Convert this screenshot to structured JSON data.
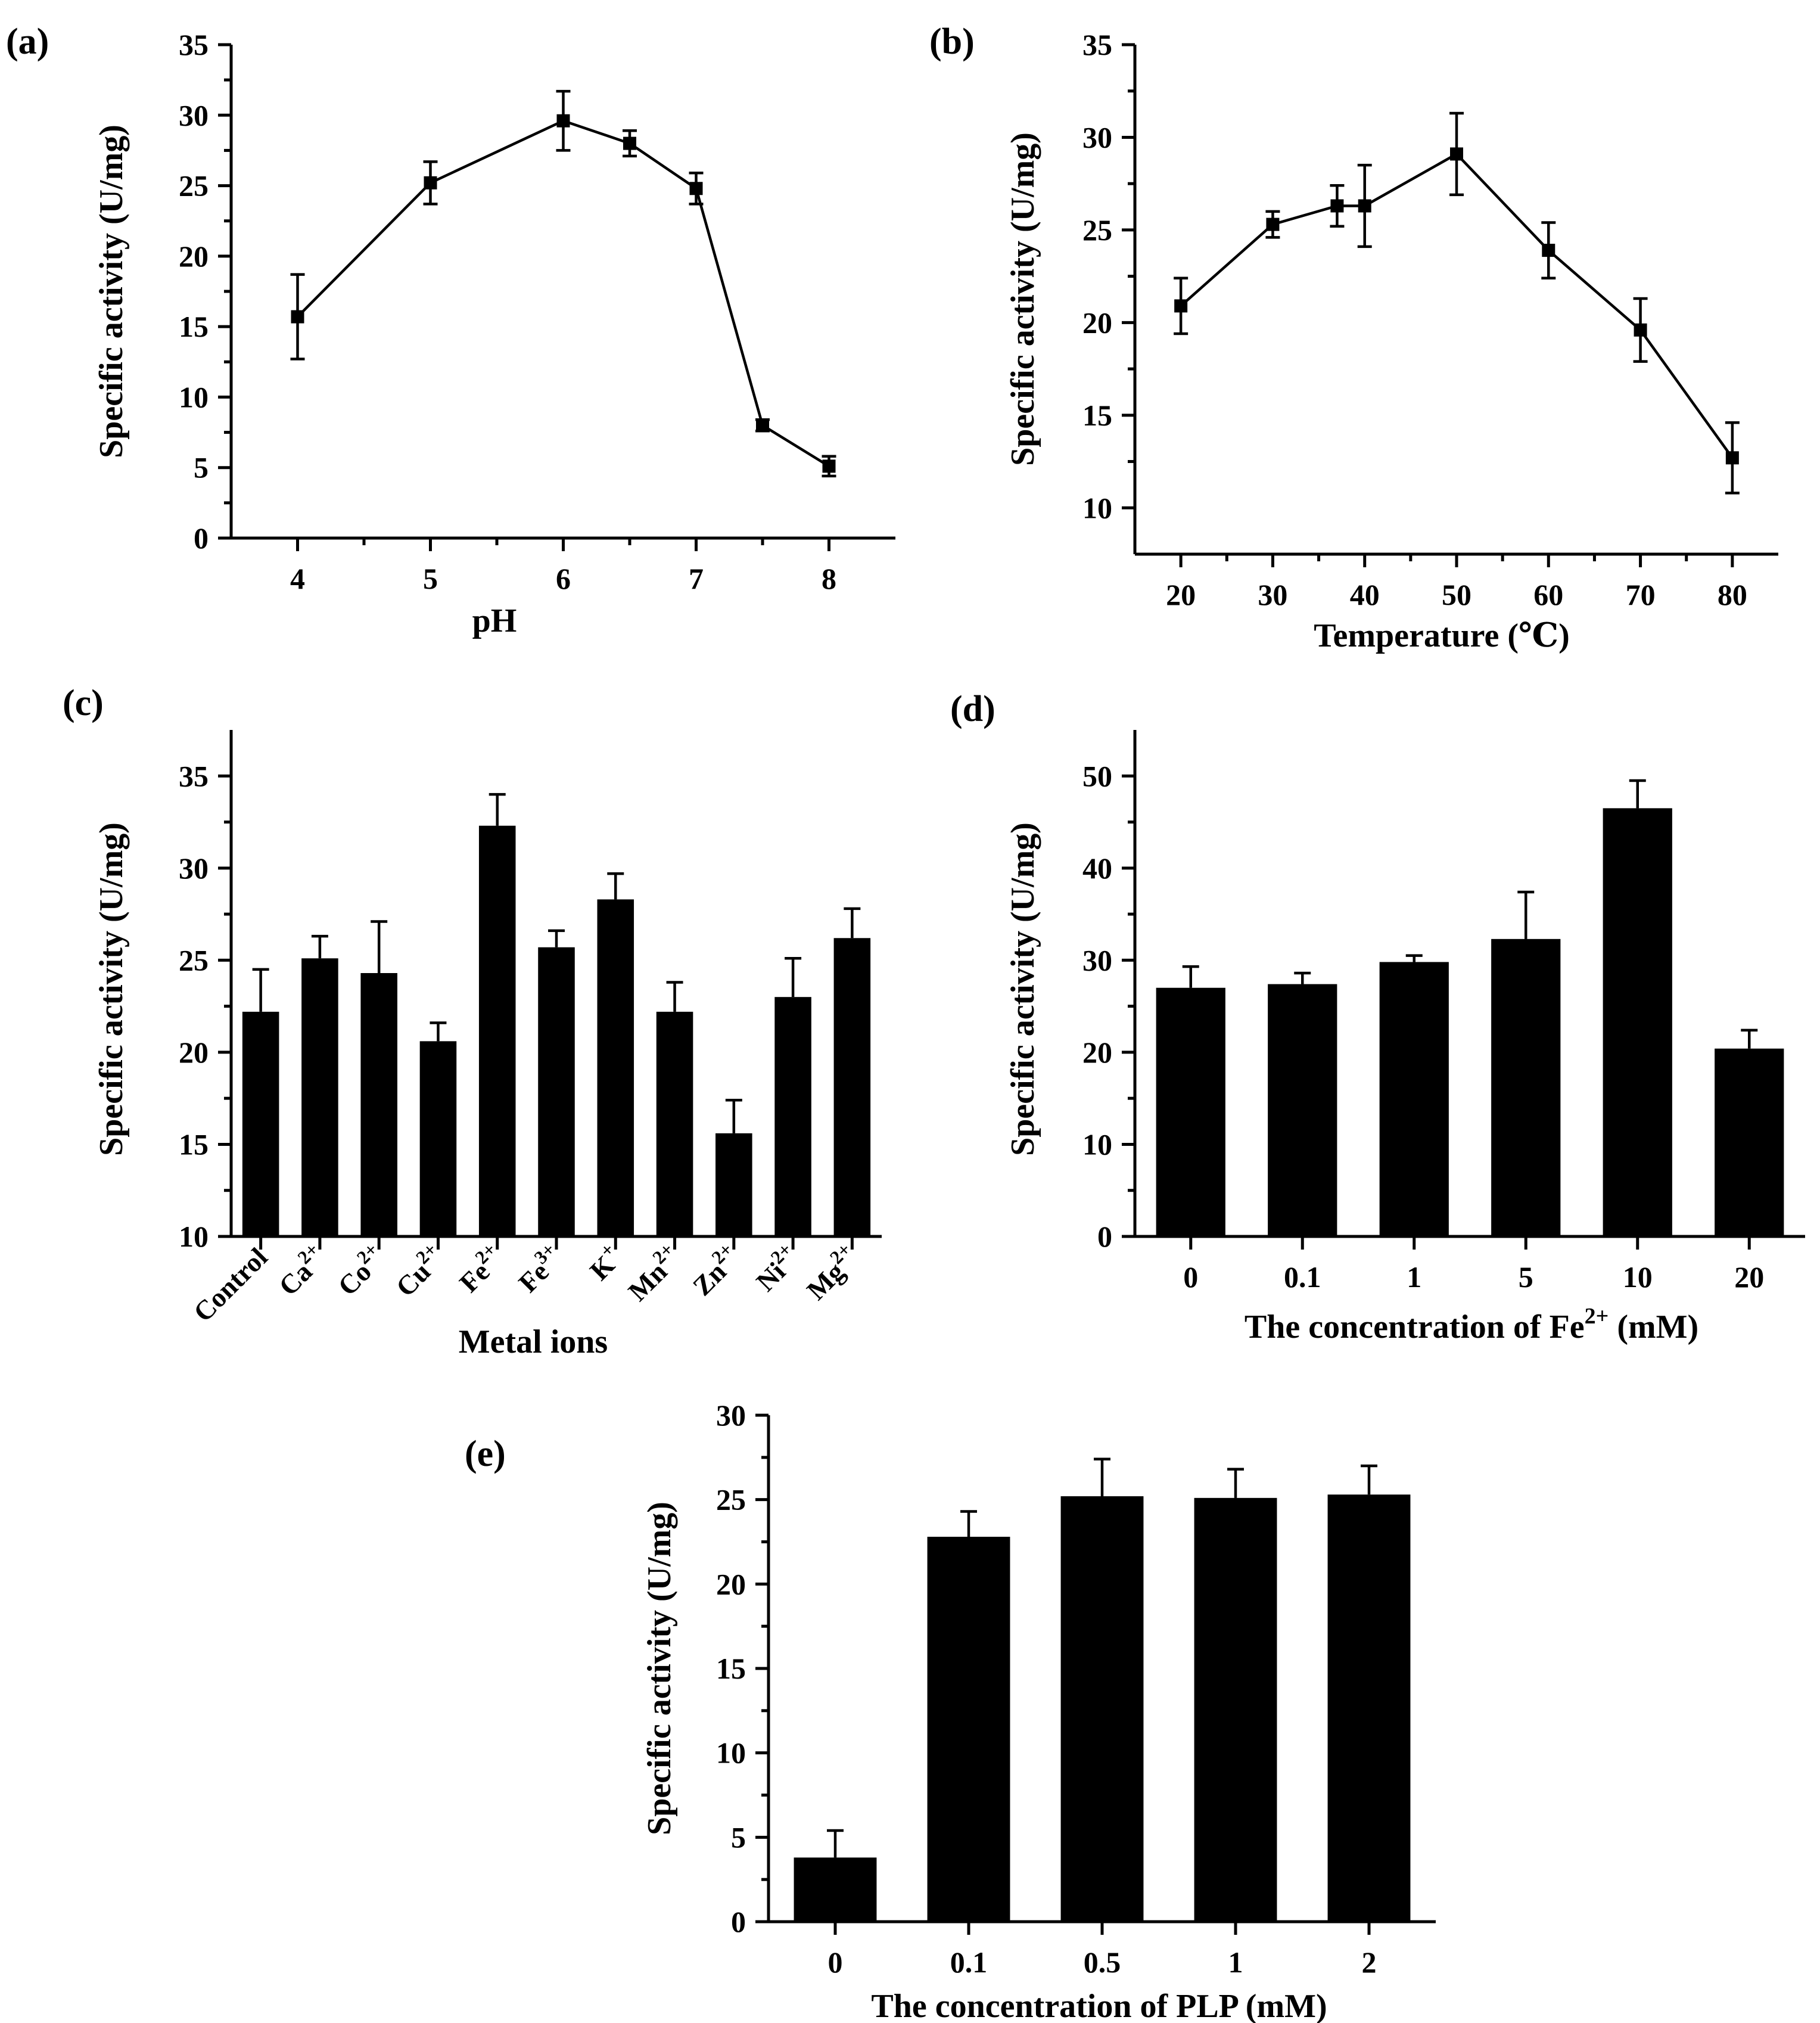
{
  "chart_data": [
    {
      "id": "a",
      "panel_label": "(a)",
      "type": "line",
      "xlabel": "pH",
      "ylabel": "Specific activity (U/mg)",
      "x": [
        4,
        5,
        6,
        6.5,
        7,
        7.5,
        8
      ],
      "values": [
        15.7,
        25.2,
        29.6,
        28.0,
        24.8,
        8.0,
        5.1
      ],
      "errors": [
        3.0,
        1.5,
        2.1,
        0.9,
        1.1,
        0.4,
        0.7
      ],
      "xlim": [
        3.5,
        8.5
      ],
      "ylim": [
        0,
        35
      ],
      "xticks": [
        "4",
        "5",
        "6",
        "7",
        "8"
      ],
      "yticks": [
        "0",
        "5",
        "10",
        "15",
        "20",
        "25",
        "30",
        "35"
      ]
    },
    {
      "id": "b",
      "panel_label": "(b)",
      "type": "line",
      "xlabel": "Temperature (℃)",
      "ylabel": "Specific activity (U/mg)",
      "x": [
        20,
        30,
        37,
        40,
        50,
        60,
        70,
        80
      ],
      "values": [
        20.9,
        25.3,
        26.3,
        26.3,
        29.1,
        23.9,
        19.6,
        12.7
      ],
      "errors": [
        1.5,
        0.7,
        1.1,
        2.2,
        2.2,
        1.5,
        1.7,
        1.9
      ],
      "xlim": [
        15,
        85
      ],
      "ylim": [
        7.5,
        35
      ],
      "xticks": [
        "20",
        "30",
        "40",
        "50",
        "60",
        "70",
        "80"
      ],
      "yticks": [
        "10",
        "15",
        "20",
        "25",
        "30",
        "35"
      ]
    },
    {
      "id": "c",
      "panel_label": "(c)",
      "type": "bar",
      "xlabel": "Metal ions",
      "ylabel": "Specific activity (U/mg)",
      "categories": [
        {
          "base": "Control",
          "sup": ""
        },
        {
          "base": "Ca",
          "sup": "2+"
        },
        {
          "base": "Co",
          "sup": "2+"
        },
        {
          "base": "Cu",
          "sup": "2+"
        },
        {
          "base": "Fe",
          "sup": "2+"
        },
        {
          "base": "Fe",
          "sup": "3+"
        },
        {
          "base": "K",
          "sup": "+"
        },
        {
          "base": "Mn",
          "sup": "2+"
        },
        {
          "base": "Zn",
          "sup": "2+"
        },
        {
          "base": "Ni",
          "sup": "2+"
        },
        {
          "base": "Mg",
          "sup": "2+"
        }
      ],
      "values": [
        22.2,
        25.1,
        24.3,
        20.6,
        32.3,
        25.7,
        28.3,
        22.2,
        15.6,
        23.0,
        26.2
      ],
      "errors": [
        2.3,
        1.2,
        2.8,
        1.0,
        1.7,
        0.9,
        1.4,
        1.6,
        1.8,
        2.1,
        1.6
      ],
      "ylim": [
        10,
        37.5
      ],
      "yticks": [
        "10",
        "15",
        "20",
        "25",
        "30",
        "35"
      ]
    },
    {
      "id": "d",
      "panel_label": "(d)",
      "type": "bar",
      "xlabel": {
        "pre": "The concentration of Fe",
        "sup": "2+",
        "post": " (mM)"
      },
      "ylabel": "Specific activity (U/mg)",
      "categories": [
        "0",
        "0.1",
        "1",
        "5",
        "10",
        "20"
      ],
      "values": [
        27.0,
        27.4,
        29.8,
        32.3,
        46.5,
        20.4
      ],
      "errors": [
        2.3,
        1.2,
        0.7,
        5.1,
        3.0,
        2.0
      ],
      "ylim": [
        0,
        55
      ],
      "yticks": [
        "0",
        "10",
        "20",
        "30",
        "40",
        "50"
      ]
    },
    {
      "id": "e",
      "panel_label": "(e)",
      "type": "bar",
      "xlabel": "The concentration of PLP (mM)",
      "ylabel": "Specific activity (U/mg)",
      "categories": [
        "0",
        "0.1",
        "0.5",
        "1",
        "2"
      ],
      "values": [
        3.8,
        22.8,
        25.2,
        25.1,
        25.3
      ],
      "errors": [
        1.6,
        1.5,
        2.2,
        1.7,
        1.7
      ],
      "ylim": [
        0,
        30
      ],
      "yticks": [
        "0",
        "5",
        "10",
        "15",
        "20",
        "25",
        "30"
      ]
    }
  ]
}
